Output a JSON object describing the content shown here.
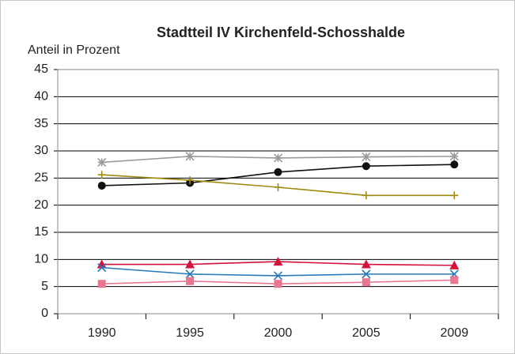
{
  "chart_data": {
    "type": "line",
    "title": "Stadtteil IV Kirchenfeld-Schosshalde",
    "y_label": "Anteil in Prozent",
    "categories": [
      "1990",
      "1995",
      "2000",
      "2005",
      "2009"
    ],
    "ylim": [
      0,
      45
    ],
    "yticks": [
      0,
      5,
      10,
      15,
      20,
      25,
      30,
      35,
      40,
      45
    ],
    "grid": true,
    "series": [
      {
        "color": "#999999",
        "marker": "star",
        "values": [
          27.9,
          29.0,
          28.7,
          28.9,
          29.0
        ]
      },
      {
        "color": "#111111",
        "marker": "circle",
        "values": [
          23.6,
          24.1,
          26.1,
          27.2,
          27.5
        ]
      },
      {
        "color": "#a08a10",
        "marker": "plus",
        "values": [
          25.6,
          24.6,
          23.3,
          21.8,
          21.8
        ]
      },
      {
        "color": "#d8103c",
        "marker": "triangle",
        "values": [
          9.1,
          9.1,
          9.6,
          9.1,
          8.9
        ]
      },
      {
        "color": "#2878b8",
        "marker": "x",
        "values": [
          8.5,
          7.3,
          7.0,
          7.3,
          7.3
        ]
      },
      {
        "color": "#e87890",
        "marker": "square",
        "values": [
          5.5,
          6.0,
          5.5,
          5.8,
          6.2
        ]
      }
    ]
  }
}
